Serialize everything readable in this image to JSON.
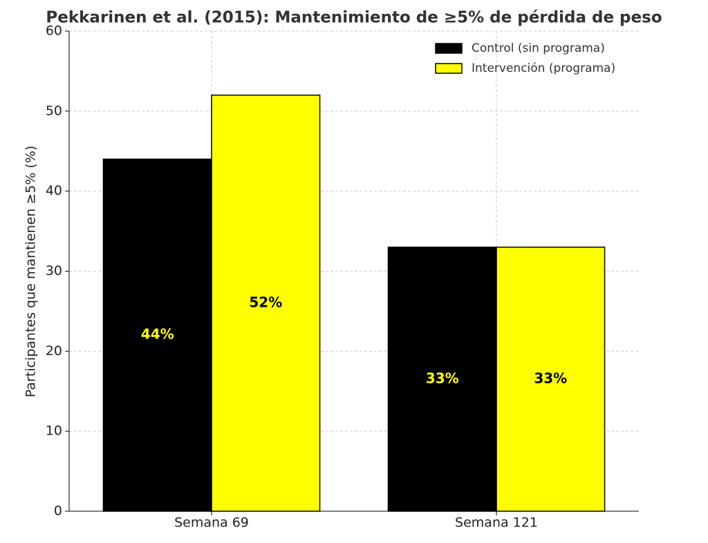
{
  "chart_data": {
    "type": "bar",
    "title": "Pekkarinen et al. (2015): Mantenimiento de ≥5% de pérdida de peso",
    "y_label": "Participantes que mantienen ≥5% (%)",
    "categories": [
      "Semana 69",
      "Semana 121"
    ],
    "series": [
      {
        "name": "Control (sin programa)",
        "color": "#000000",
        "label_color": "#ffff00",
        "values": [
          44,
          33
        ],
        "value_labels": [
          "44%",
          "33%"
        ]
      },
      {
        "name": "Intervención (programa)",
        "color": "#ffff00",
        "label_color": "#000000",
        "values": [
          52,
          33
        ],
        "value_labels": [
          "52%",
          "33%"
        ]
      }
    ],
    "ylim": [
      0,
      60
    ],
    "yticks": [
      0,
      10,
      20,
      30,
      40,
      50,
      60
    ],
    "grid": true,
    "legend": "upper right"
  }
}
